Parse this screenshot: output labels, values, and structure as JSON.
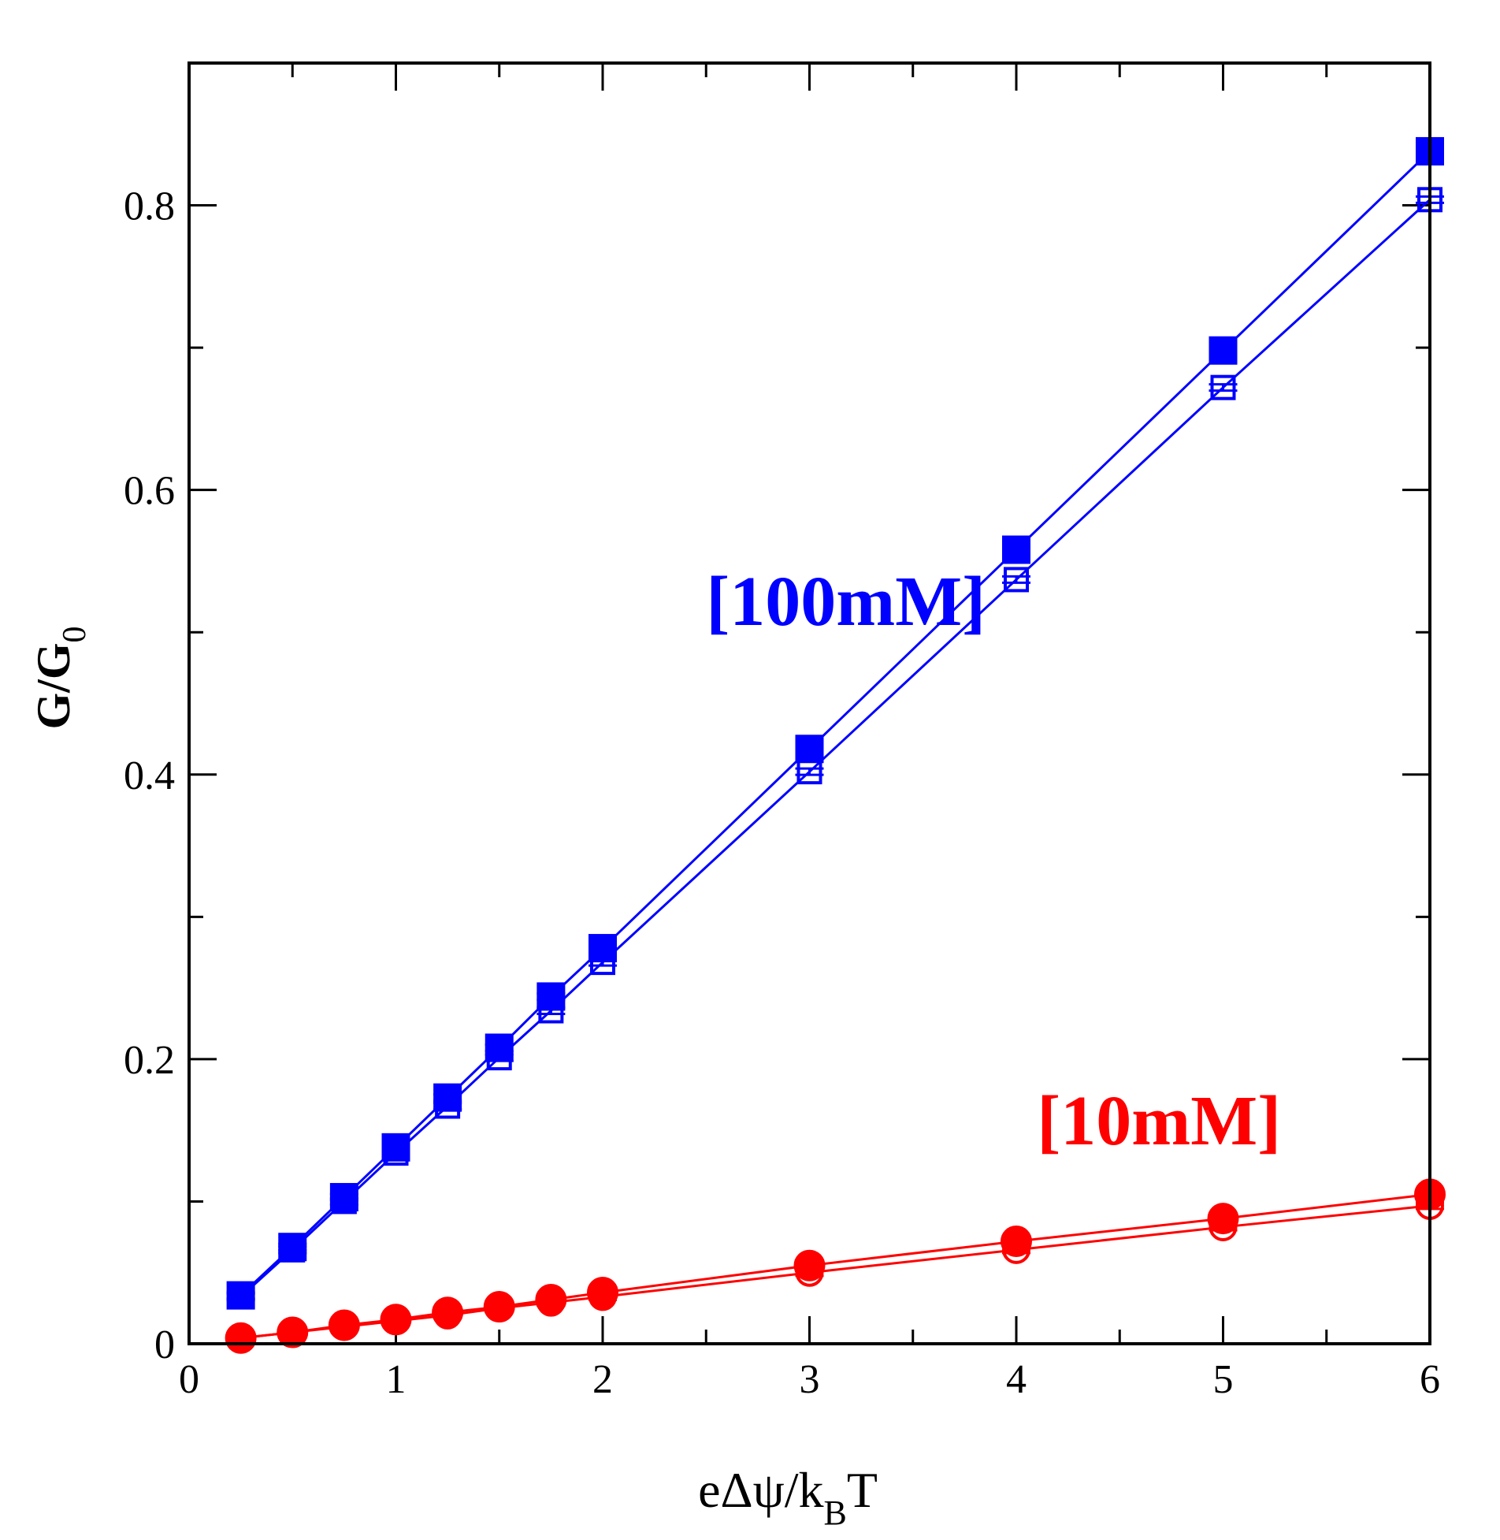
{
  "chart_data": {
    "type": "line",
    "title": "",
    "xlabel": {
      "main": "eΔψ/k",
      "sub": "B",
      "tail": "T"
    },
    "ylabel": {
      "main": "G/G",
      "sub": "0"
    },
    "xlim": [
      0,
      6
    ],
    "ylim": [
      0,
      0.9
    ],
    "x_major_ticks": [
      0,
      1,
      2,
      3,
      4,
      5,
      6
    ],
    "x_tick_labels": [
      "0",
      "1",
      "2",
      "3",
      "4",
      "5",
      "6"
    ],
    "x_minor_ticks": [
      0.5,
      1.5,
      2.5,
      3.5,
      4.5,
      5.5
    ],
    "y_major_ticks": [
      0,
      0.2,
      0.4,
      0.6,
      0.8
    ],
    "y_tick_labels": [
      "0",
      "0.2",
      "0.4",
      "0.6",
      "0.8"
    ],
    "y_minor_ticks": [
      0.1,
      0.3,
      0.5,
      0.7
    ],
    "grid": false,
    "legend": "none",
    "x": [
      0.25,
      0.5,
      0.75,
      1.0,
      1.25,
      1.5,
      1.75,
      2.0,
      3.0,
      4.0,
      5.0,
      6.0
    ],
    "series": [
      {
        "name": "100mM filled",
        "color": "#0000ff",
        "marker": "square",
        "filled": true,
        "values": [
          0.034,
          0.068,
          0.103,
          0.138,
          0.173,
          0.208,
          0.244,
          0.278,
          0.418,
          0.558,
          0.698,
          0.838
        ]
      },
      {
        "name": "100mM open",
        "color": "#0000ff",
        "marker": "square",
        "filled": false,
        "values": [
          0.033,
          0.066,
          0.1,
          0.134,
          0.167,
          0.201,
          0.234,
          0.268,
          0.402,
          0.537,
          0.672,
          0.804
        ]
      },
      {
        "name": "10mM filled",
        "color": "#ff0000",
        "marker": "circle",
        "filled": true,
        "values": [
          0.004,
          0.008,
          0.013,
          0.017,
          0.022,
          0.026,
          0.031,
          0.036,
          0.055,
          0.072,
          0.088,
          0.105
        ]
      },
      {
        "name": "10mM open",
        "color": "#ff0000",
        "marker": "circle",
        "filled": false,
        "values": [
          0.004,
          0.008,
          0.012,
          0.016,
          0.02,
          0.025,
          0.029,
          0.033,
          0.05,
          0.066,
          0.082,
          0.097
        ]
      }
    ],
    "annotations": [
      {
        "text": "[100mM]",
        "color": "#0000ff",
        "x": 2.5,
        "y": 0.505
      },
      {
        "text": "[10mM]",
        "color": "#ff0000",
        "x": 4.1,
        "y": 0.14
      }
    ]
  }
}
